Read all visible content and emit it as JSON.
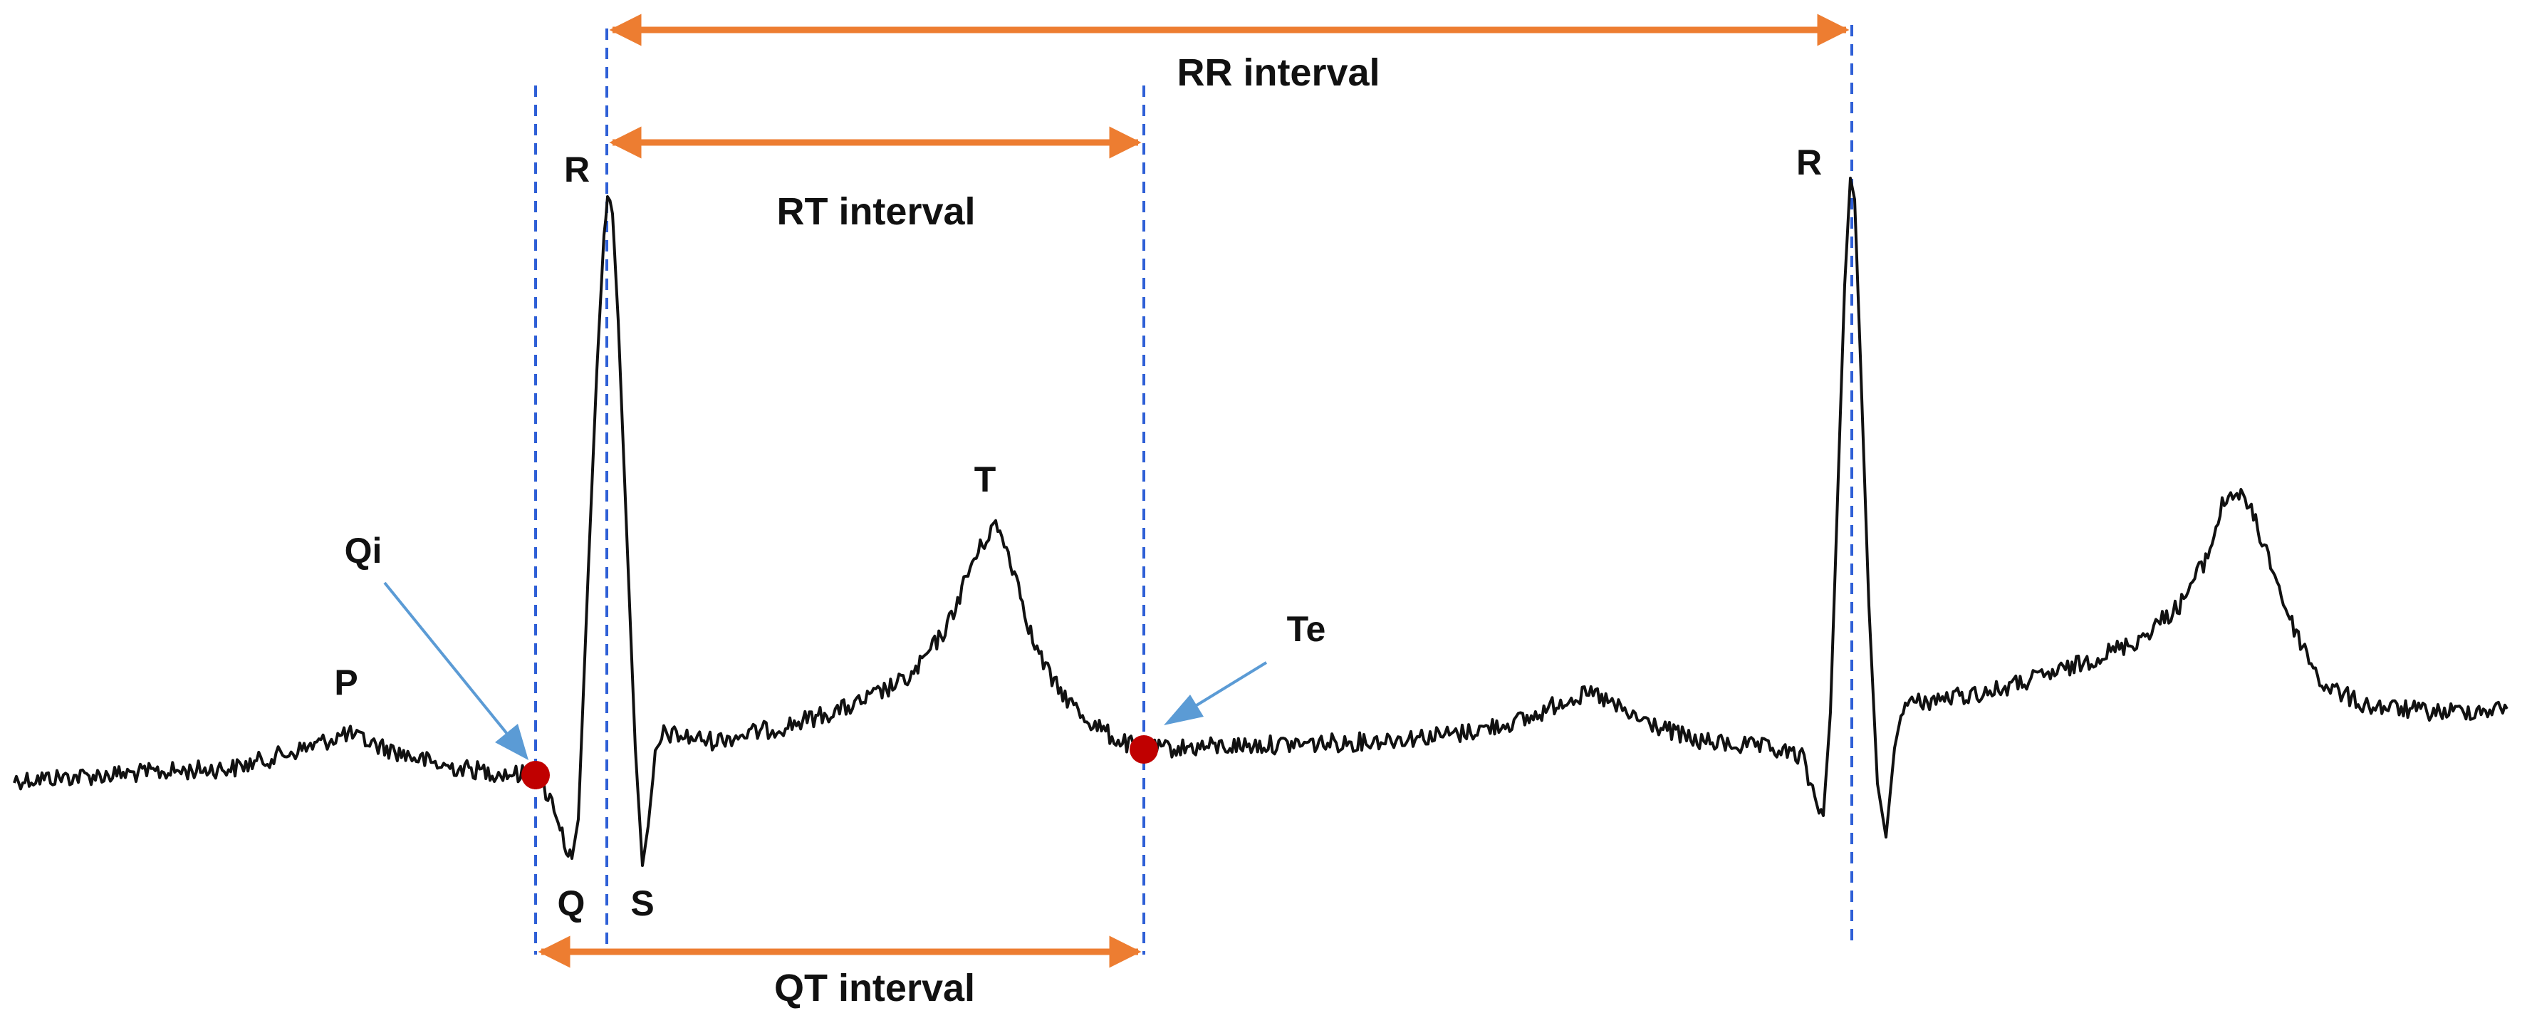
{
  "colors": {
    "trace": "#111111",
    "guide": "#2e5fd6",
    "interval_arrow": "#ed7d31",
    "callout_arrow": "#5b9bd5",
    "marker": "#c00000"
  },
  "wave_labels": {
    "p": "P",
    "q": "Q",
    "r1": "R",
    "s": "S",
    "t": "T",
    "r2": "R"
  },
  "point_labels": {
    "qi": "Qi",
    "te": "Te"
  },
  "intervals": {
    "rr": "RR interval",
    "rt": "RT interval",
    "qt": "QT interval"
  }
}
